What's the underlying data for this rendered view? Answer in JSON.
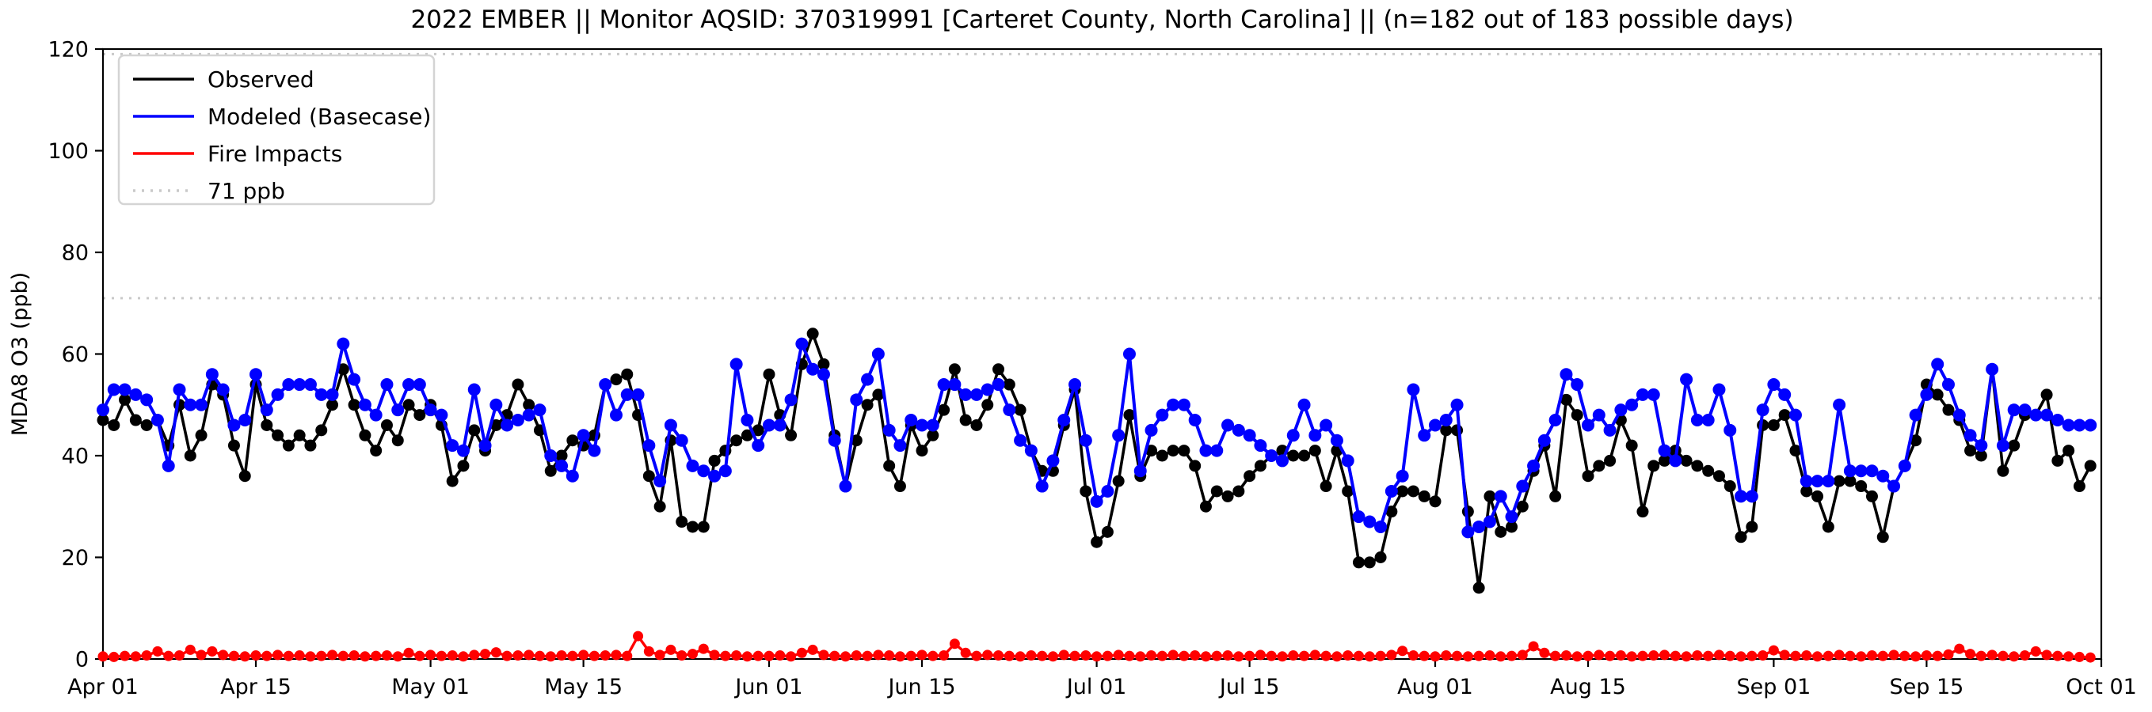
{
  "title": "2022 EMBER || Monitor AQSID: 370319991 [Carteret County, North Carolina] || (n=182 out of 183 possible days)",
  "colors": {
    "observed": "#000000",
    "modeled": "#0000ff",
    "fire": "#ff0000",
    "reference": "#c9c9c9",
    "axis": "#000000",
    "legend_border": "#d4d4d4"
  },
  "legend": {
    "position": "upper-left",
    "items": [
      {
        "label": "Observed",
        "color": "#000000",
        "style": "solid"
      },
      {
        "label": "Modeled (Basecase)",
        "color": "#0000ff",
        "style": "solid"
      },
      {
        "label": "Fire Impacts",
        "color": "#ff0000",
        "style": "solid"
      },
      {
        "label": "71 ppb",
        "color": "#c9c9c9",
        "style": "dotted"
      }
    ]
  },
  "axes": {
    "ylabel": "MDA8 O3 (ppb)",
    "xlabel": "",
    "ylim": [
      0,
      120
    ],
    "yticks": [
      0,
      20,
      40,
      60,
      80,
      100,
      120
    ],
    "grid": false,
    "xticks": [
      {
        "label": "Apr 01",
        "day": 0
      },
      {
        "label": "Apr 15",
        "day": 14
      },
      {
        "label": "May 01",
        "day": 30
      },
      {
        "label": "May 15",
        "day": 44
      },
      {
        "label": "Jun 01",
        "day": 61
      },
      {
        "label": "Jun 15",
        "day": 75
      },
      {
        "label": "Jul 01",
        "day": 91
      },
      {
        "label": "Jul 15",
        "day": 105
      },
      {
        "label": "Aug 01",
        "day": 122
      },
      {
        "label": "Aug 15",
        "day": 136
      },
      {
        "label": "Sep 01",
        "day": 153
      },
      {
        "label": "Sep 15",
        "day": 167
      },
      {
        "label": "Oct 01",
        "day": 183
      }
    ]
  },
  "chart_data": {
    "type": "line",
    "title": "2022 EMBER || Monitor AQSID: 370319991 [Carteret County, North Carolina] || (n=182 out of 183 possible days)",
    "xlabel": "",
    "ylabel": "MDA8 O3 (ppb)",
    "ylim": [
      0,
      120
    ],
    "x_start_date": "2022-04-01",
    "x_end_date": "2022-09-30",
    "x_step_days": 1,
    "n_days": 183,
    "reference_lines": [
      {
        "label": "71 ppb",
        "value": 71,
        "style": "dotted",
        "color": "#c9c9c9"
      },
      {
        "label": "",
        "value": 119,
        "style": "dotted",
        "color": "#c9c9c9"
      }
    ],
    "series": [
      {
        "name": "Observed",
        "color": "#000000",
        "marker": "circle",
        "values": [
          47,
          46,
          51,
          47,
          46,
          47,
          42,
          50,
          40,
          44,
          54,
          52,
          42,
          36,
          54,
          46,
          44,
          42,
          44,
          42,
          45,
          50,
          57,
          50,
          44,
          41,
          46,
          43,
          50,
          48,
          50,
          46,
          35,
          38,
          45,
          41,
          46,
          48,
          54,
          50,
          45,
          37,
          40,
          43,
          42,
          44,
          54,
          55,
          56,
          48,
          36,
          30,
          43,
          27,
          26,
          26,
          39,
          41,
          43,
          44,
          45,
          56,
          48,
          44,
          58,
          64,
          58,
          44,
          34,
          43,
          50,
          52,
          38,
          34,
          46,
          41,
          44,
          49,
          57,
          47,
          46,
          50,
          57,
          54,
          49,
          41,
          37,
          37,
          46,
          53,
          33,
          23,
          25,
          35,
          48,
          36,
          41,
          40,
          41,
          41,
          38,
          30,
          33,
          32,
          33,
          36,
          38,
          40,
          41,
          40,
          40,
          41,
          34,
          41,
          33,
          19,
          19,
          20,
          29,
          33,
          33,
          32,
          31,
          45,
          45,
          29,
          14,
          32,
          25,
          26,
          30,
          37,
          42,
          32,
          51,
          48,
          36,
          38,
          39,
          47,
          42,
          29,
          38,
          39,
          41,
          39,
          38,
          37,
          36,
          34,
          24,
          26,
          46,
          46,
          48,
          41,
          33,
          32,
          26,
          35,
          35,
          34,
          32,
          24,
          34,
          38,
          43,
          54,
          52,
          49,
          47,
          41,
          40,
          57,
          37,
          42,
          48,
          48,
          52,
          39,
          41,
          34,
          38
        ]
      },
      {
        "name": "Modeled (Basecase)",
        "color": "#0000ff",
        "marker": "circle",
        "values": [
          49,
          53,
          53,
          52,
          51,
          47,
          38,
          53,
          50,
          50,
          56,
          53,
          46,
          47,
          56,
          49,
          52,
          54,
          54,
          54,
          52,
          52,
          62,
          55,
          50,
          48,
          54,
          49,
          54,
          54,
          49,
          48,
          42,
          41,
          53,
          42,
          50,
          46,
          47,
          48,
          49,
          40,
          38,
          36,
          44,
          41,
          54,
          48,
          52,
          52,
          42,
          35,
          46,
          43,
          38,
          37,
          36,
          37,
          58,
          47,
          42,
          46,
          46,
          51,
          62,
          57,
          56,
          43,
          34,
          51,
          55,
          60,
          45,
          42,
          47,
          46,
          46,
          54,
          54,
          52,
          52,
          53,
          54,
          49,
          43,
          41,
          34,
          39,
          47,
          54,
          43,
          31,
          33,
          44,
          60,
          37,
          45,
          48,
          50,
          50,
          47,
          41,
          41,
          46,
          45,
          44,
          42,
          40,
          39,
          44,
          50,
          44,
          46,
          43,
          39,
          28,
          27,
          26,
          33,
          36,
          53,
          44,
          46,
          47,
          50,
          25,
          26,
          27,
          32,
          28,
          34,
          38,
          43,
          47,
          56,
          54,
          46,
          48,
          45,
          49,
          50,
          52,
          52,
          41,
          39,
          55,
          47,
          47,
          53,
          45,
          32,
          32,
          49,
          54,
          52,
          48,
          35,
          35,
          35,
          50,
          37,
          37,
          37,
          36,
          34,
          38,
          48,
          52,
          58,
          54,
          48,
          44,
          42,
          57,
          42,
          49,
          49,
          48,
          48,
          47,
          46,
          46,
          46
        ]
      },
      {
        "name": "Fire Impacts",
        "color": "#ff0000",
        "marker": "circle",
        "values": [
          0.5,
          0.4,
          0.6,
          0.5,
          0.7,
          1.5,
          0.6,
          0.7,
          1.8,
          0.8,
          1.5,
          0.8,
          0.6,
          0.5,
          0.7,
          0.6,
          0.8,
          0.6,
          0.7,
          0.5,
          0.6,
          0.8,
          0.6,
          0.7,
          0.5,
          0.6,
          0.7,
          0.5,
          1.2,
          0.6,
          0.8,
          0.6,
          0.7,
          0.5,
          0.8,
          1.0,
          1.3,
          0.6,
          0.7,
          0.8,
          0.6,
          0.5,
          0.7,
          0.6,
          0.8,
          0.6,
          0.7,
          0.8,
          0.6,
          4.5,
          1.5,
          0.8,
          1.8,
          0.7,
          1.0,
          2.0,
          0.8,
          0.6,
          0.7,
          0.5,
          0.6,
          0.6,
          0.7,
          0.5,
          1.2,
          1.8,
          0.8,
          0.6,
          0.5,
          0.7,
          0.6,
          0.8,
          0.7,
          0.5,
          0.6,
          0.8,
          0.6,
          0.7,
          3.0,
          1.2,
          0.6,
          0.8,
          0.7,
          0.6,
          0.5,
          0.7,
          0.6,
          0.5,
          0.8,
          0.6,
          0.7,
          0.5,
          0.6,
          0.8,
          0.6,
          0.5,
          0.7,
          0.6,
          0.8,
          0.6,
          0.7,
          0.5,
          0.6,
          0.7,
          0.5,
          0.6,
          0.8,
          0.6,
          0.5,
          0.7,
          0.6,
          0.8,
          0.6,
          0.5,
          0.7,
          0.6,
          0.5,
          0.6,
          0.8,
          1.6,
          0.7,
          0.6,
          0.5,
          0.7,
          0.6,
          0.5,
          0.6,
          0.7,
          0.5,
          0.6,
          0.8,
          2.5,
          1.2,
          0.6,
          0.7,
          0.5,
          0.6,
          0.8,
          0.6,
          0.7,
          0.5,
          0.6,
          0.7,
          0.8,
          0.6,
          0.5,
          0.7,
          0.6,
          0.8,
          0.6,
          0.5,
          0.6,
          0.7,
          1.7,
          0.8,
          0.6,
          0.7,
          0.5,
          0.6,
          0.8,
          0.6,
          0.5,
          0.7,
          0.6,
          0.8,
          0.6,
          0.5,
          0.7,
          0.6,
          0.9,
          2.0,
          1.0,
          0.6,
          0.8,
          0.6,
          0.5,
          0.7,
          1.5,
          0.8,
          0.6,
          0.5,
          0.4,
          0.3
        ]
      }
    ]
  }
}
